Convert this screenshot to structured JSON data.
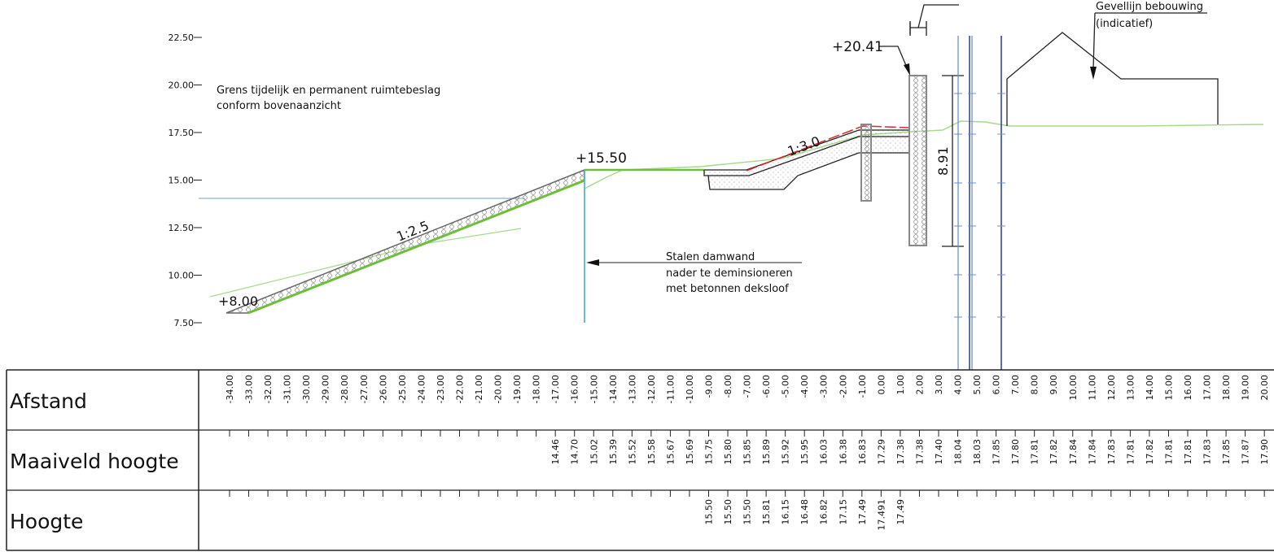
{
  "axis": {
    "yticks": [
      "22.50",
      "20.00",
      "17.50",
      "15.00",
      "12.50",
      "10.00",
      "7.50"
    ]
  },
  "annotations": {
    "boundary": [
      "Grens tijdelijk en permanent ruimtebeslag",
      "conform bovenaanzicht"
    ],
    "crest_level": "+15.50",
    "slope_left": "1:2.5",
    "toe_level": "+8.00",
    "sheet_pile": [
      "Stalen damwand",
      "nader te deminsioneren",
      "met betonnen deksloof"
    ],
    "slope_right": "1:3.0",
    "wall_top": "+20.41",
    "wall_height": "8.91",
    "facade": [
      "Gevellijn bebouwing",
      "(indicatief)"
    ]
  },
  "table": {
    "rows": [
      {
        "label": "Afstand",
        "values": [
          "-34.00",
          "-33.00",
          "-32.00",
          "-31.00",
          "-30.00",
          "-29.00",
          "-28.00",
          "-27.00",
          "-26.00",
          "-25.00",
          "-24.00",
          "-23.00",
          "-22.00",
          "-21.00",
          "-20.00",
          "-19.00",
          "-18.00",
          "-17.00",
          "-16.00",
          "-15.00",
          "-14.00",
          "-13.00",
          "-12.00",
          "-11.00",
          "-10.00",
          "-9.00",
          "-8.00",
          "-7.00",
          "-6.00",
          "-5.00",
          "-4.00",
          "-3.00",
          "-2.00",
          "-1.00",
          "0.00",
          "1.00",
          "2.00",
          "3.00",
          "4.00",
          "5.00",
          "6.00",
          "7.00",
          "8.00",
          "9.00",
          "10.00",
          "11.00",
          "12.00",
          "13.00",
          "14.00",
          "15.00",
          "16.00",
          "17.00",
          "18.00",
          "19.00",
          "20.00"
        ]
      },
      {
        "label": "Maaiveld hoogte",
        "values": [
          null,
          null,
          null,
          null,
          null,
          null,
          null,
          null,
          null,
          null,
          null,
          null,
          null,
          null,
          null,
          null,
          null,
          "14.46",
          "14.70",
          "15.02",
          "15.39",
          "15.52",
          "15.58",
          "15.67",
          "15.69",
          "15.75",
          "15.80",
          "15.85",
          "15.89",
          "15.92",
          "15.95",
          "16.03",
          "16.38",
          "16.83",
          "17.29",
          "17.38",
          "17.38",
          "17.40",
          "18.04",
          "18.03",
          "17.85",
          "17.80",
          "17.81",
          "17.82",
          "17.84",
          "17.84",
          "17.83",
          "17.81",
          "17.82",
          "17.81",
          "17.81",
          "17.83",
          "17.85",
          "17.87",
          "17.90"
        ]
      },
      {
        "label": "Hoogte",
        "values": [
          null,
          null,
          null,
          null,
          null,
          null,
          null,
          null,
          null,
          null,
          null,
          null,
          null,
          null,
          null,
          null,
          null,
          null,
          null,
          null,
          null,
          null,
          null,
          null,
          null,
          "15.50",
          "15.50",
          "15.50",
          "15.81",
          "16.15",
          "16.48",
          "16.82",
          "17.15",
          "17.49",
          "17.491",
          "17.49",
          null,
          null,
          null,
          null,
          null,
          null,
          null,
          null,
          null,
          null,
          null,
          null,
          null,
          null,
          null,
          null,
          null,
          null,
          null
        ]
      }
    ]
  }
}
